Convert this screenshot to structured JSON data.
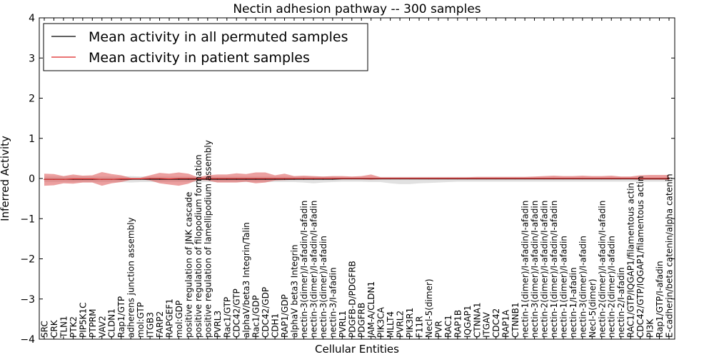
{
  "chart_data": {
    "type": "line",
    "title": "Nectin adhesion pathway -- 300 samples",
    "xlabel": "Cellular Entities",
    "ylabel": "Inferred Activity",
    "ylim": [
      -4,
      4
    ],
    "yticks": [
      -4,
      -3,
      -2,
      -1,
      0,
      1,
      2,
      3,
      4
    ],
    "ytick_labels": [
      "−4",
      "−3",
      "−2",
      "−1",
      "0",
      "1",
      "2",
      "3",
      "4"
    ],
    "legend_position": "top-left",
    "categories": [
      "SRC",
      "CRK",
      "TLN1",
      "PTK2",
      "PIP5K1C",
      "PTPRM",
      "VAV2",
      "CLDN1",
      "Rap1/GTP",
      "adherens junction assembly",
      "mol:GTP",
      "ITGB3",
      "FARP2",
      "RAPGEF1",
      "mol:GDP",
      "positive regulation of JNK cascade",
      "positive regulation of filopodium formation",
      "positive regulation of lamellipodium assembly",
      "PVRL3",
      "Rac1/GTP",
      "CDC42/GTP",
      "alphaV/beta3 Integrin/Talin",
      "Rac1/GDP",
      "CDC42/GDP",
      "CDH1",
      "RAP1/GDP",
      "alphaV beta3 Integrin",
      "nectin-3(dimer)/I-afadin/I-afadin",
      "nectin-3(dimer)/I-afadin/I-afadin",
      "nectin-3(dimer)/I-afadin",
      "nectin-3/I-afadin",
      "PVRL1",
      "PDGFB-D/PDGFRB",
      "PDGFRB",
      "JAM-A/CLDN1",
      "PIK3CA",
      "MLLT4",
      "PVRL2",
      "PIK3R1",
      "F11R",
      "Necl-5(dimer)",
      "PVR",
      "RAC1",
      "RAP1B",
      "IQGAP1",
      "CTNNA1",
      "ITGAV",
      "CDC42",
      "RAP1A",
      "CTNNB1",
      "nectin-1(dimer)/I-afadin/I-afadin",
      "nectin-3(dimer)/I-afadin/I-afadin",
      "nectin-2(dimer)/I-afadin/I-afadin",
      "nectin-1(dimer)/I-afadin/I-afadin",
      "nectin-1(dimer)/I-afadin",
      "nectin-1/I-afadin",
      "nectin-3(dimer)/I-afadin",
      "Necl-5(dimer)",
      "nectin-2(dimer)/I-afadin/I-afadin",
      "nectin-2(dimer)/I-afadin",
      "nectin-2/I-afadin",
      "RAC1/GTP/IQGAP1/filamentous actin",
      "CDC42/GTP/IQGAP1/filamentous actin",
      "PI3K",
      "Rap1/GTP/I-afadin",
      "E-cadherin/beta catenin/alpha catenin"
    ],
    "series": [
      {
        "name": "Mean activity in all permuted samples",
        "color": "#000000",
        "band_color": "#c8c8c8",
        "values": [
          -0.02,
          -0.02,
          -0.02,
          -0.02,
          -0.02,
          -0.02,
          -0.02,
          -0.02,
          -0.02,
          -0.02,
          -0.02,
          -0.02,
          -0.02,
          -0.02,
          -0.02,
          -0.02,
          -0.02,
          -0.02,
          -0.02,
          -0.02,
          -0.02,
          -0.02,
          -0.02,
          -0.02,
          -0.02,
          -0.02,
          -0.02,
          -0.02,
          -0.02,
          -0.02,
          -0.02,
          -0.01,
          -0.01,
          -0.01,
          -0.01,
          -0.01,
          -0.01,
          -0.01,
          -0.01,
          -0.01,
          -0.01,
          -0.01,
          -0.01,
          -0.01,
          -0.01,
          -0.01,
          -0.01,
          -0.01,
          -0.01,
          -0.01,
          -0.01,
          -0.01,
          -0.01,
          -0.01,
          -0.01,
          -0.01,
          -0.01,
          -0.01,
          -0.01,
          -0.01,
          -0.01,
          -0.01,
          -0.01,
          -0.01,
          -0.01,
          -0.01
        ],
        "upper": [
          0.05,
          0.05,
          0.05,
          0.05,
          0.05,
          0.05,
          0.05,
          0.05,
          0.05,
          0.06,
          0.05,
          0.05,
          0.05,
          0.05,
          0.05,
          0.05,
          0.05,
          0.05,
          0.05,
          0.05,
          0.05,
          0.05,
          0.05,
          0.05,
          0.05,
          0.05,
          0.05,
          0.05,
          0.05,
          0.05,
          0.05,
          0.04,
          0.04,
          0.04,
          0.04,
          0.04,
          0.04,
          0.04,
          0.04,
          0.04,
          0.04,
          0.04,
          0.04,
          0.04,
          0.04,
          0.04,
          0.04,
          0.04,
          0.04,
          0.04,
          0.04,
          0.04,
          0.04,
          0.04,
          0.04,
          0.04,
          0.04,
          0.04,
          0.04,
          0.04,
          0.04,
          0.04,
          0.04,
          0.04,
          0.04,
          0.04
        ],
        "lower": [
          -0.09,
          -0.09,
          -0.09,
          -0.09,
          -0.09,
          -0.09,
          -0.09,
          -0.09,
          -0.09,
          -0.1,
          -0.09,
          -0.09,
          -0.09,
          -0.09,
          -0.09,
          -0.09,
          -0.09,
          -0.09,
          -0.09,
          -0.09,
          -0.09,
          -0.09,
          -0.09,
          -0.09,
          -0.09,
          -0.09,
          -0.09,
          -0.1,
          -0.12,
          -0.1,
          -0.09,
          -0.08,
          -0.08,
          -0.08,
          -0.09,
          -0.09,
          -0.12,
          -0.14,
          -0.14,
          -0.12,
          -0.11,
          -0.1,
          -0.09,
          -0.08,
          -0.08,
          -0.08,
          -0.08,
          -0.08,
          -0.08,
          -0.08,
          -0.08,
          -0.08,
          -0.08,
          -0.08,
          -0.08,
          -0.08,
          -0.08,
          -0.08,
          -0.08,
          -0.08,
          -0.08,
          -0.08,
          -0.08,
          -0.08,
          -0.08,
          -0.08
        ]
      },
      {
        "name": "Mean activity in patient samples",
        "color": "#dd2222",
        "band_color": "#e06060",
        "values": [
          -0.02,
          -0.02,
          -0.02,
          -0.01,
          -0.01,
          -0.01,
          -0.02,
          -0.02,
          -0.01,
          -0.01,
          -0.01,
          0.0,
          0.0,
          -0.01,
          0.0,
          0.0,
          0.0,
          0.0,
          0.0,
          0.0,
          0.0,
          0.0,
          0.0,
          0.0,
          0.0,
          0.0,
          0.0,
          0.0,
          0.0,
          0.0,
          0.0,
          0.0,
          0.0,
          0.0,
          0.0,
          0.0,
          0.0,
          0.0,
          0.0,
          0.0,
          0.0,
          0.0,
          0.0,
          0.0,
          0.0,
          0.0,
          0.0,
          0.0,
          0.0,
          0.0,
          0.0,
          0.0,
          0.0,
          0.0,
          0.0,
          0.0,
          0.0,
          0.0,
          0.0,
          0.0,
          0.0,
          0.0,
          0.0,
          0.0,
          0.0,
          0.0
        ],
        "upper": [
          0.12,
          0.11,
          0.06,
          0.1,
          0.07,
          0.08,
          0.16,
          0.11,
          0.08,
          0.02,
          0.02,
          0.08,
          0.14,
          0.12,
          0.15,
          0.12,
          0.03,
          0.08,
          0.1,
          0.1,
          0.13,
          0.11,
          0.15,
          0.15,
          0.08,
          0.12,
          0.06,
          0.07,
          0.06,
          0.05,
          0.06,
          0.06,
          0.05,
          0.06,
          0.1,
          0.03,
          0.03,
          0.03,
          0.03,
          0.03,
          0.03,
          0.03,
          0.03,
          0.03,
          0.03,
          0.04,
          0.04,
          0.04,
          0.04,
          0.04,
          0.04,
          0.05,
          0.06,
          0.07,
          0.06,
          0.06,
          0.07,
          0.06,
          0.06,
          0.07,
          0.05,
          0.05,
          0.08,
          0.09,
          0.09,
          0.09
        ],
        "lower": [
          -0.18,
          -0.17,
          -0.12,
          -0.13,
          -0.1,
          -0.1,
          -0.18,
          -0.12,
          -0.09,
          -0.03,
          -0.02,
          -0.05,
          -0.12,
          -0.15,
          -0.18,
          -0.13,
          -0.03,
          -0.05,
          -0.1,
          -0.1,
          -0.1,
          -0.08,
          -0.12,
          -0.1,
          -0.05,
          -0.04,
          -0.03,
          -0.02,
          -0.02,
          -0.02,
          -0.02,
          -0.02,
          -0.02,
          -0.02,
          -0.03,
          -0.02,
          -0.02,
          -0.02,
          -0.02,
          -0.02,
          -0.02,
          -0.02,
          -0.02,
          -0.02,
          -0.02,
          -0.02,
          -0.02,
          -0.02,
          -0.02,
          -0.02,
          -0.02,
          -0.02,
          -0.02,
          -0.02,
          -0.02,
          -0.02,
          -0.02,
          -0.02,
          -0.02,
          -0.02,
          -0.02,
          -0.02,
          -0.03,
          -0.03,
          -0.03,
          -0.03
        ]
      }
    ]
  }
}
